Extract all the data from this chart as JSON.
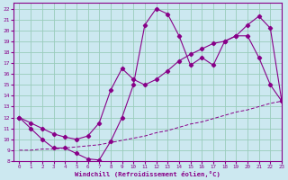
{
  "xlabel": "Windchill (Refroidissement éolien,°C)",
  "bg_color": "#cce8f0",
  "line_color": "#880088",
  "grid_color": "#99ccbb",
  "xlim": [
    -0.5,
    23
  ],
  "ylim": [
    8,
    22.5
  ],
  "yticks": [
    8,
    9,
    10,
    11,
    12,
    13,
    14,
    15,
    16,
    17,
    18,
    19,
    20,
    21,
    22
  ],
  "xticks": [
    0,
    1,
    2,
    3,
    4,
    5,
    6,
    7,
    8,
    9,
    10,
    11,
    12,
    13,
    14,
    15,
    16,
    17,
    18,
    19,
    20,
    21,
    22,
    23
  ],
  "s1_x": [
    0,
    1,
    2,
    3,
    4,
    5,
    6,
    7,
    8,
    9,
    10,
    11,
    12,
    13,
    14,
    15,
    16,
    17,
    18,
    19,
    20,
    21,
    22,
    23
  ],
  "s1_y": [
    12,
    11,
    10,
    9.2,
    9.2,
    8.7,
    8.2,
    8.1,
    9.8,
    12.0,
    15.0,
    20.5,
    22.0,
    21.5,
    19.5,
    16.8,
    17.5,
    16.8,
    19.0,
    19.5,
    20.5,
    21.3,
    20.2,
    13.5
  ],
  "s2_x": [
    0,
    1,
    2,
    3,
    4,
    5,
    6,
    7,
    8,
    9,
    10,
    11,
    12,
    13,
    14,
    15,
    16,
    17,
    18,
    19,
    20,
    21,
    22,
    23
  ],
  "s2_y": [
    12,
    11.5,
    11,
    10.5,
    10.2,
    10.0,
    10.3,
    11.5,
    14.5,
    16.5,
    15.5,
    15.0,
    15.5,
    16.3,
    17.2,
    17.8,
    18.3,
    18.8,
    19.0,
    19.5,
    19.5,
    17.5,
    15.0,
    13.5
  ],
  "s3_x": [
    0,
    1,
    2,
    3,
    4,
    5,
    6,
    7,
    8,
    9,
    10,
    11,
    12,
    13,
    14,
    15,
    16,
    17,
    18,
    19,
    20,
    21,
    22,
    23
  ],
  "s3_y": [
    9.0,
    9.0,
    9.1,
    9.1,
    9.2,
    9.3,
    9.4,
    9.5,
    9.7,
    9.9,
    10.1,
    10.3,
    10.6,
    10.8,
    11.1,
    11.4,
    11.6,
    11.9,
    12.2,
    12.5,
    12.7,
    13.0,
    13.3,
    13.5
  ]
}
